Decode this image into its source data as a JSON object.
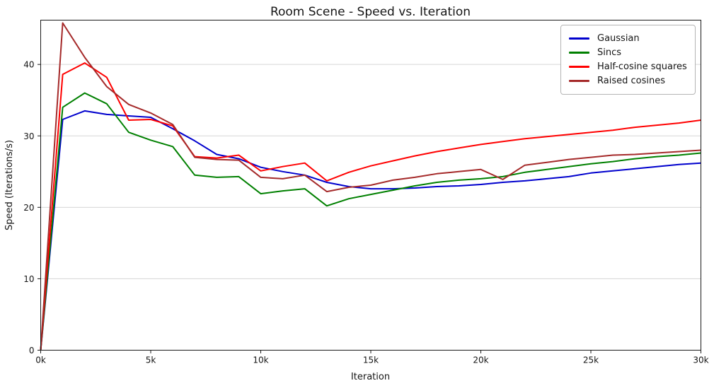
{
  "chart_data": {
    "type": "line",
    "title": "Room Scene - Speed vs. Iteration",
    "xlabel": "Iteration",
    "ylabel": "Speed (Iterations/s)",
    "grid": "horizontal",
    "legend_position": "top-right",
    "xlim": [
      0,
      30
    ],
    "ylim": [
      0,
      46.2
    ],
    "x_units": "thousands of iterations",
    "x": [
      0,
      1,
      2,
      3,
      4,
      5,
      6,
      7,
      8,
      9,
      10,
      11,
      12,
      13,
      14,
      15,
      16,
      17,
      18,
      19,
      20,
      21,
      22,
      23,
      24,
      25,
      26,
      27,
      28,
      29,
      30
    ],
    "xtick_values": [
      0,
      5,
      10,
      15,
      20,
      25,
      30
    ],
    "xtick_labels": [
      "0k",
      "5k",
      "10k",
      "15k",
      "20k",
      "25k",
      "30k"
    ],
    "ytick_values": [
      0,
      10,
      20,
      30,
      40
    ],
    "ytick_labels": [
      "0",
      "10",
      "20",
      "30",
      "40"
    ],
    "series": [
      {
        "name": "Gaussian",
        "color": "#0000cd",
        "values": [
          0,
          32.3,
          33.5,
          33.0,
          32.8,
          32.6,
          31.0,
          29.3,
          27.4,
          26.8,
          25.6,
          25.0,
          24.5,
          23.5,
          22.9,
          22.6,
          22.6,
          22.7,
          22.9,
          23.0,
          23.2,
          23.5,
          23.7,
          24.0,
          24.3,
          24.8,
          25.1,
          25.4,
          25.7,
          26.0,
          26.2
        ]
      },
      {
        "name": "Sincs",
        "color": "#008000",
        "values": [
          0,
          34.0,
          36.0,
          34.5,
          30.5,
          29.4,
          28.5,
          24.5,
          24.2,
          24.3,
          21.9,
          22.3,
          22.6,
          20.2,
          21.2,
          21.8,
          22.4,
          23.0,
          23.5,
          23.8,
          24.0,
          24.3,
          24.9,
          25.3,
          25.7,
          26.1,
          26.4,
          26.8,
          27.1,
          27.3,
          27.6
        ]
      },
      {
        "name": "Half-cosine squares",
        "color": "#ff0000",
        "values": [
          0,
          38.6,
          40.2,
          38.2,
          32.2,
          32.3,
          31.4,
          27.1,
          26.9,
          27.3,
          25.1,
          25.7,
          26.2,
          23.7,
          24.9,
          25.8,
          26.5,
          27.2,
          27.8,
          28.3,
          28.8,
          29.2,
          29.6,
          29.9,
          30.2,
          30.5,
          30.8,
          31.2,
          31.5,
          31.8,
          32.2
        ]
      },
      {
        "name": "Raised cosines",
        "color": "#a52a2a",
        "values": [
          0,
          45.8,
          41.0,
          36.9,
          34.4,
          33.2,
          31.6,
          27.0,
          26.7,
          26.6,
          24.2,
          24.0,
          24.5,
          22.2,
          22.8,
          23.1,
          23.8,
          24.2,
          24.7,
          25.0,
          25.3,
          23.9,
          25.9,
          26.3,
          26.7,
          27.0,
          27.3,
          27.4,
          27.6,
          27.8,
          28.0
        ]
      }
    ]
  }
}
